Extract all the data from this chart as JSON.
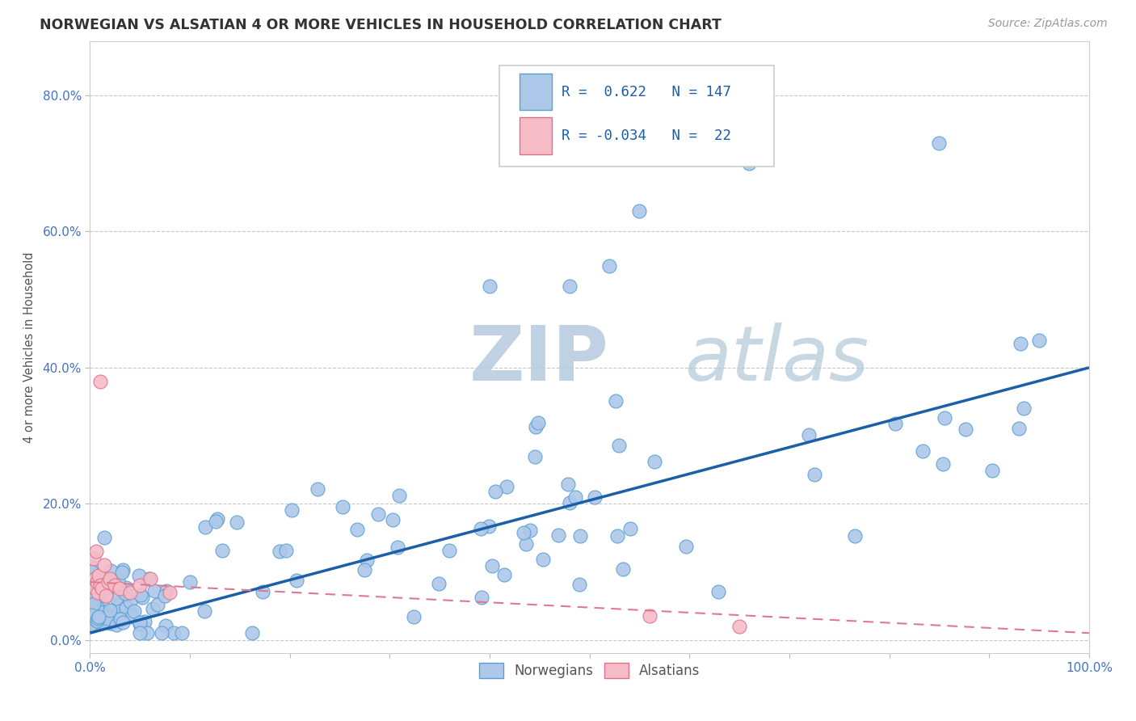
{
  "title": "NORWEGIAN VS ALSATIAN 4 OR MORE VEHICLES IN HOUSEHOLD CORRELATION CHART",
  "source": "Source: ZipAtlas.com",
  "ylabel": "4 or more Vehicles in Household",
  "xlim": [
    0.0,
    1.0
  ],
  "ylim": [
    -0.02,
    0.88
  ],
  "xtick_vals": [
    0.0,
    0.1,
    0.2,
    0.3,
    0.4,
    0.5,
    0.6,
    0.7,
    0.8,
    0.9,
    1.0
  ],
  "ytick_vals": [
    0.0,
    0.2,
    0.4,
    0.6,
    0.8
  ],
  "ytick_labels": [
    "0.0%",
    "20.0%",
    "40.0%",
    "60.0%",
    "80.0%"
  ],
  "xtick_labels": [
    "0.0%",
    "",
    "",
    "",
    "",
    "",
    "",
    "",
    "",
    "",
    "100.0%"
  ],
  "norwegian_color": "#adc8e8",
  "alsatian_color": "#f5bcc8",
  "norwegian_edge": "#5a9fd4",
  "alsatian_edge": "#e0708a",
  "line_norwegian_color": "#1a5fa8",
  "line_alsatian_color": "#e07890",
  "watermark": "ZIPatlas",
  "R_norwegian": 0.622,
  "N_norwegian": 147,
  "R_alsatian": -0.034,
  "N_alsatian": 22,
  "background_color": "#ffffff",
  "grid_color": "#c8c8c8",
  "title_color": "#333333",
  "legend_text_color": "#1a5fa8",
  "watermark_color": "#ccd8e8",
  "nor_line_x0": 0.0,
  "nor_line_y0": 0.01,
  "nor_line_x1": 1.0,
  "nor_line_y1": 0.4,
  "als_line_x0": 0.0,
  "als_line_y0": 0.085,
  "als_line_x1": 1.0,
  "als_line_y1": 0.01
}
